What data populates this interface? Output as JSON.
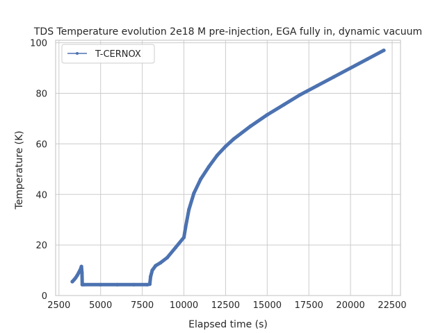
{
  "chart_data": {
    "type": "line",
    "title": "TDS Temperature evolution 2e18 M pre-injection, EGA fully in, dynamic vacuum",
    "xlabel": "Elapsed time (s)",
    "ylabel": "Temperature (K)",
    "xlim": [
      2300,
      23000
    ],
    "ylim": [
      0,
      101
    ],
    "xticks": [
      2500,
      5000,
      7500,
      10000,
      12500,
      15000,
      17500,
      20000,
      22500
    ],
    "yticks": [
      0,
      20,
      40,
      60,
      80,
      100
    ],
    "grid": true,
    "legend_position": "top-left",
    "colors": {
      "series": "#4c72b0",
      "grid": "#cccccc",
      "text": "#262626"
    },
    "series": [
      {
        "name": "T-CERNOX",
        "x": [
          3300,
          3400,
          3500,
          3600,
          3700,
          3800,
          3850,
          3880,
          3900,
          4000,
          5000,
          6000,
          7000,
          7800,
          7950,
          8000,
          8100,
          8300,
          8600,
          9000,
          9500,
          10000,
          10100,
          10300,
          10600,
          11000,
          11500,
          12000,
          12500,
          13000,
          14000,
          15000,
          16000,
          17000,
          18000,
          19000,
          20000,
          21000,
          22000
        ],
        "y": [
          5.5,
          6.2,
          7.0,
          8.0,
          9.2,
          10.5,
          11.5,
          9.0,
          4.3,
          4.3,
          4.3,
          4.3,
          4.3,
          4.3,
          4.5,
          7.5,
          10.0,
          11.8,
          13.0,
          15.0,
          19.0,
          23.0,
          27.0,
          34.0,
          40.5,
          46.0,
          51.0,
          55.5,
          59.0,
          62.0,
          67.0,
          71.5,
          75.5,
          79.5,
          83.0,
          86.5,
          90.0,
          93.5,
          97.0
        ]
      }
    ]
  }
}
